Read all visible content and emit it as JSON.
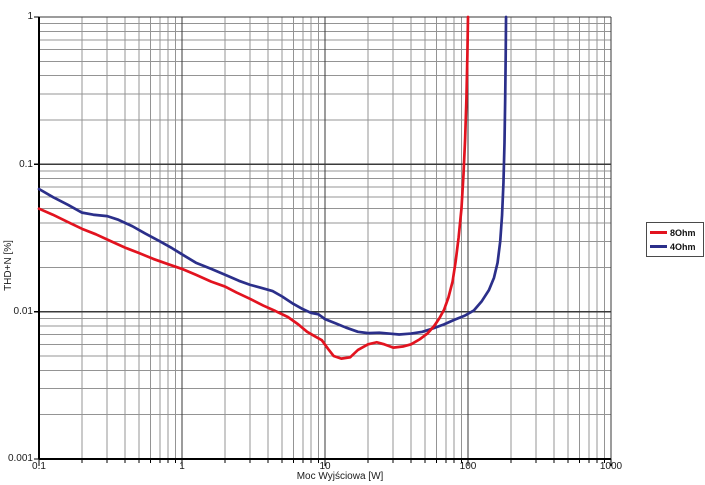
{
  "chart_data": {
    "type": "line",
    "title": "",
    "xlabel": "Moc Wyjściowa [W]",
    "ylabel": "THD+N [%]",
    "x_scale": "log",
    "y_scale": "log",
    "xlim": [
      0.1,
      1000
    ],
    "ylim": [
      0.001,
      1
    ],
    "grid": "log-log full minor grid",
    "legend_position": "right-outside",
    "x_tick_labels": [
      "0.1",
      "1",
      "10",
      "100",
      "1000"
    ],
    "y_tick_labels": [
      "1",
      "0.1",
      "0.01",
      "0.001"
    ],
    "colors": {
      "grid_minor": "#949494",
      "grid_major": "#3a3a3a",
      "axis": "#000000",
      "background": "#ffffff"
    },
    "series": [
      {
        "name": "4Ohm",
        "color": "#2b2f8a",
        "points": [
          [
            0.1,
            0.068
          ],
          [
            0.125,
            0.06
          ],
          [
            0.16,
            0.053
          ],
          [
            0.2,
            0.047
          ],
          [
            0.24,
            0.0455
          ],
          [
            0.3,
            0.0445
          ],
          [
            0.36,
            0.042
          ],
          [
            0.45,
            0.038
          ],
          [
            0.55,
            0.034
          ],
          [
            0.7,
            0.03
          ],
          [
            0.85,
            0.027
          ],
          [
            1.0,
            0.0245
          ],
          [
            1.25,
            0.0215
          ],
          [
            1.6,
            0.0195
          ],
          [
            2.0,
            0.0178
          ],
          [
            2.5,
            0.0162
          ],
          [
            3.0,
            0.0152
          ],
          [
            3.6,
            0.0145
          ],
          [
            4.3,
            0.0138
          ],
          [
            5.0,
            0.0127
          ],
          [
            6.0,
            0.0113
          ],
          [
            7.0,
            0.0104
          ],
          [
            8.0,
            0.0098
          ],
          [
            9.0,
            0.0096
          ],
          [
            10,
            0.0089
          ],
          [
            12,
            0.0083
          ],
          [
            14,
            0.0078
          ],
          [
            17,
            0.0073
          ],
          [
            20,
            0.00715
          ],
          [
            24,
            0.0072
          ],
          [
            28,
            0.0071
          ],
          [
            33,
            0.007
          ],
          [
            40,
            0.0071
          ],
          [
            48,
            0.0073
          ],
          [
            57,
            0.0077
          ],
          [
            68,
            0.0082
          ],
          [
            80,
            0.0088
          ],
          [
            95,
            0.0094
          ],
          [
            110,
            0.0102
          ],
          [
            125,
            0.0118
          ],
          [
            140,
            0.014
          ],
          [
            152,
            0.017
          ],
          [
            161,
            0.0215
          ],
          [
            168,
            0.03
          ],
          [
            173,
            0.045
          ],
          [
            177,
            0.075
          ],
          [
            180,
            0.14
          ],
          [
            182,
            0.28
          ],
          [
            183.5,
            0.55
          ],
          [
            184.5,
            1.0
          ]
        ]
      },
      {
        "name": "8Ohm",
        "color": "#e2131f",
        "points": [
          [
            0.1,
            0.05
          ],
          [
            0.125,
            0.0455
          ],
          [
            0.16,
            0.0405
          ],
          [
            0.2,
            0.0365
          ],
          [
            0.25,
            0.0335
          ],
          [
            0.32,
            0.03
          ],
          [
            0.4,
            0.0272
          ],
          [
            0.5,
            0.025
          ],
          [
            0.63,
            0.0228
          ],
          [
            0.8,
            0.021
          ],
          [
            1.0,
            0.0195
          ],
          [
            1.25,
            0.0178
          ],
          [
            1.6,
            0.016
          ],
          [
            2.0,
            0.0148
          ],
          [
            2.4,
            0.0135
          ],
          [
            3.0,
            0.0122
          ],
          [
            3.7,
            0.011
          ],
          [
            4.5,
            0.0101
          ],
          [
            5.5,
            0.0092
          ],
          [
            6.5,
            0.0082
          ],
          [
            7.5,
            0.0073
          ],
          [
            8.5,
            0.0068
          ],
          [
            9.5,
            0.0064
          ],
          [
            10.5,
            0.0056
          ],
          [
            11.5,
            0.005
          ],
          [
            13,
            0.0048
          ],
          [
            15,
            0.0049
          ],
          [
            17,
            0.0055
          ],
          [
            20,
            0.006
          ],
          [
            23,
            0.0062
          ],
          [
            26,
            0.006
          ],
          [
            30,
            0.0057
          ],
          [
            35,
            0.0058
          ],
          [
            40,
            0.006
          ],
          [
            46,
            0.0065
          ],
          [
            52,
            0.0071
          ],
          [
            58,
            0.008
          ],
          [
            63,
            0.009
          ],
          [
            68,
            0.0103
          ],
          [
            73,
            0.0125
          ],
          [
            78,
            0.016
          ],
          [
            82,
            0.022
          ],
          [
            86,
            0.032
          ],
          [
            90,
            0.05
          ],
          [
            93,
            0.085
          ],
          [
            95.5,
            0.15
          ],
          [
            97.5,
            0.28
          ],
          [
            99,
            0.55
          ],
          [
            100,
            1.0
          ]
        ]
      }
    ],
    "legend": [
      {
        "label": "8Ohm",
        "series": "8Ohm"
      },
      {
        "label": "4Ohm",
        "series": "4Ohm"
      }
    ]
  }
}
